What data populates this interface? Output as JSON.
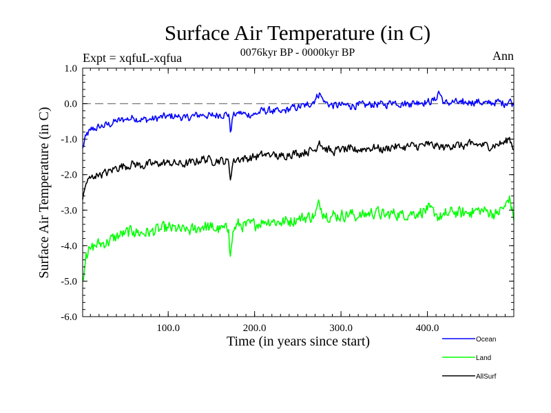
{
  "chart_data": {
    "type": "line",
    "title": "Surface Air Temperature (in C)",
    "subtitle": "0076kyr BP - 0000kyr BP",
    "left_annotation": "Expt = xqfuL-xqfua",
    "right_annotation": "Ann",
    "xlabel": "Time (in years since start)",
    "ylabel": "Surface Air Temperature (in C)",
    "xlim": [
      1,
      500
    ],
    "ylim": [
      -6.0,
      1.0
    ],
    "x_ticks": [
      {
        "value": 100,
        "label": "100.0"
      },
      {
        "value": 200,
        "label": "200.0"
      },
      {
        "value": 300,
        "label": "300.0"
      },
      {
        "value": 400,
        "label": "400.0"
      }
    ],
    "y_ticks": [
      {
        "value": 1.0,
        "label": "1.0"
      },
      {
        "value": 0.0,
        "label": "0.0"
      },
      {
        "value": -1.0,
        "label": "-1.0"
      },
      {
        "value": -2.0,
        "label": "-2.0"
      },
      {
        "value": -3.0,
        "label": "-3.0"
      },
      {
        "value": -4.0,
        "label": "-4.0"
      },
      {
        "value": -5.0,
        "label": "-5.0"
      },
      {
        "value": -6.0,
        "label": "-6.0"
      }
    ],
    "reference_line": {
      "y": 0.0,
      "style": "dashed",
      "color": "#808080"
    },
    "series": [
      {
        "name": "Ocean",
        "color": "#0000ff",
        "x": [
          1,
          5,
          10,
          15,
          20,
          30,
          40,
          50,
          60,
          70,
          80,
          90,
          100,
          110,
          120,
          130,
          140,
          150,
          160,
          170,
          172,
          175,
          180,
          190,
          200,
          210,
          220,
          230,
          240,
          250,
          260,
          270,
          275,
          280,
          290,
          300,
          310,
          320,
          330,
          340,
          350,
          360,
          370,
          380,
          390,
          400,
          410,
          413,
          420,
          430,
          440,
          450,
          460,
          470,
          480,
          490,
          495,
          500
        ],
        "values": [
          -1.25,
          -0.9,
          -0.75,
          -0.7,
          -0.65,
          -0.6,
          -0.5,
          -0.45,
          -0.4,
          -0.45,
          -0.45,
          -0.4,
          -0.35,
          -0.35,
          -0.4,
          -0.35,
          -0.3,
          -0.35,
          -0.3,
          -0.3,
          -0.8,
          -0.35,
          -0.25,
          -0.3,
          -0.3,
          -0.2,
          -0.2,
          -0.25,
          -0.15,
          -0.1,
          -0.05,
          0.1,
          0.3,
          0.05,
          -0.05,
          -0.05,
          -0.05,
          -0.05,
          -0.05,
          0.0,
          -0.05,
          0.05,
          0.0,
          0.0,
          0.05,
          0.05,
          0.1,
          0.35,
          0.0,
          0.05,
          0.0,
          0.05,
          0.05,
          0.0,
          0.05,
          0.0,
          0.1,
          -0.05
        ]
      },
      {
        "name": "Land",
        "color": "#00ff00",
        "x": [
          1,
          5,
          10,
          15,
          20,
          30,
          40,
          50,
          60,
          70,
          80,
          90,
          100,
          110,
          120,
          130,
          140,
          150,
          160,
          170,
          172,
          175,
          180,
          190,
          200,
          210,
          220,
          230,
          240,
          250,
          260,
          270,
          275,
          280,
          290,
          300,
          310,
          320,
          330,
          340,
          350,
          360,
          370,
          380,
          390,
          400,
          410,
          413,
          420,
          430,
          440,
          450,
          460,
          470,
          480,
          490,
          495,
          500
        ],
        "values": [
          -5.0,
          -4.2,
          -4.1,
          -4.0,
          -3.95,
          -3.9,
          -3.75,
          -3.65,
          -3.6,
          -3.65,
          -3.6,
          -3.55,
          -3.5,
          -3.55,
          -3.6,
          -3.55,
          -3.45,
          -3.5,
          -3.55,
          -3.55,
          -4.3,
          -3.6,
          -3.4,
          -3.45,
          -3.4,
          -3.3,
          -3.3,
          -3.35,
          -3.3,
          -3.25,
          -3.2,
          -3.15,
          -2.8,
          -3.1,
          -3.15,
          -3.15,
          -3.1,
          -3.2,
          -3.1,
          -3.05,
          -3.15,
          -3.1,
          -3.1,
          -3.1,
          -3.05,
          -3.0,
          -3.1,
          -3.2,
          -3.15,
          -3.05,
          -3.1,
          -3.05,
          -3.0,
          -3.05,
          -3.1,
          -2.9,
          -2.6,
          -3.3
        ]
      },
      {
        "name": "AllSurf",
        "color": "#000000",
        "x": [
          1,
          5,
          10,
          15,
          20,
          30,
          40,
          50,
          60,
          70,
          80,
          90,
          100,
          110,
          120,
          130,
          140,
          150,
          160,
          170,
          172,
          175,
          180,
          190,
          200,
          210,
          220,
          230,
          240,
          250,
          260,
          270,
          275,
          280,
          290,
          300,
          310,
          320,
          330,
          340,
          350,
          360,
          370,
          380,
          390,
          400,
          410,
          413,
          420,
          430,
          440,
          450,
          460,
          470,
          480,
          490,
          495,
          500
        ],
        "values": [
          -2.7,
          -2.25,
          -2.1,
          -2.05,
          -2.0,
          -1.95,
          -1.8,
          -1.75,
          -1.7,
          -1.75,
          -1.7,
          -1.7,
          -1.65,
          -1.7,
          -1.7,
          -1.65,
          -1.55,
          -1.6,
          -1.6,
          -1.65,
          -2.15,
          -1.65,
          -1.55,
          -1.55,
          -1.5,
          -1.45,
          -1.45,
          -1.5,
          -1.4,
          -1.4,
          -1.35,
          -1.3,
          -1.05,
          -1.25,
          -1.35,
          -1.3,
          -1.3,
          -1.3,
          -1.25,
          -1.25,
          -1.3,
          -1.2,
          -1.25,
          -1.2,
          -1.2,
          -1.15,
          -1.2,
          -1.2,
          -1.25,
          -1.15,
          -1.2,
          -1.15,
          -1.15,
          -1.2,
          -1.15,
          -1.1,
          -0.95,
          -1.3
        ]
      }
    ],
    "legend": {
      "placement": "bottom-right",
      "entries": [
        {
          "label": "Ocean",
          "color": "#0000ff"
        },
        {
          "label": "Land",
          "color": "#00ff00"
        },
        {
          "label": "AllSurf",
          "color": "#000000"
        }
      ]
    }
  }
}
